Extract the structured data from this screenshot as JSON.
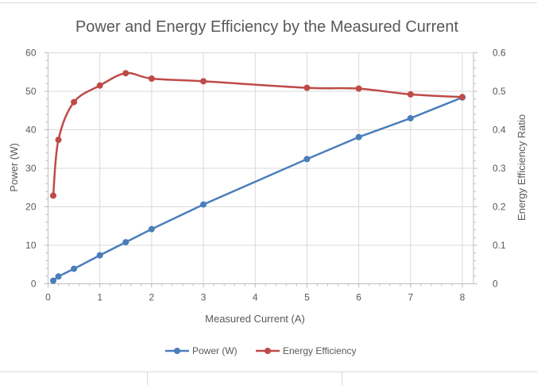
{
  "chart_data": {
    "type": "line",
    "title": "Power and Energy Efficiency by the Measured Current",
    "xlabel": "Measured Current (A)",
    "ylabel": "Power (W)",
    "y2label": "Energy Efficiency Ratio",
    "xlim": [
      0,
      8
    ],
    "ylim": [
      0,
      60
    ],
    "y2lim": [
      0,
      0.6
    ],
    "xticks": [
      0,
      1,
      2,
      3,
      4,
      5,
      6,
      7,
      8
    ],
    "yticks": [
      0,
      10,
      20,
      30,
      40,
      50,
      60
    ],
    "y2ticks": [
      "0",
      "0.1",
      "0.2",
      "0.3",
      "0.4",
      "0.5",
      "0.6"
    ],
    "grid": true,
    "legend": "bottom",
    "x": [
      0.1,
      0.2,
      0.5,
      1,
      1.5,
      2,
      3,
      5,
      6,
      7,
      8
    ],
    "series": [
      {
        "name": "Power (W)",
        "axis": "left",
        "color": "#4a7ebb",
        "smooth": false,
        "values": [
          0.8,
          1.9,
          3.9,
          7.4,
          10.8,
          14.2,
          20.6,
          32.4,
          38.1,
          43.0,
          48.4
        ]
      },
      {
        "name": "Energy Efficiency",
        "axis": "right",
        "color": "#be4b48",
        "smooth": true,
        "values": [
          0.229,
          0.374,
          0.472,
          0.515,
          0.547,
          0.533,
          0.526,
          0.509,
          0.507,
          0.492,
          0.485
        ]
      }
    ]
  }
}
